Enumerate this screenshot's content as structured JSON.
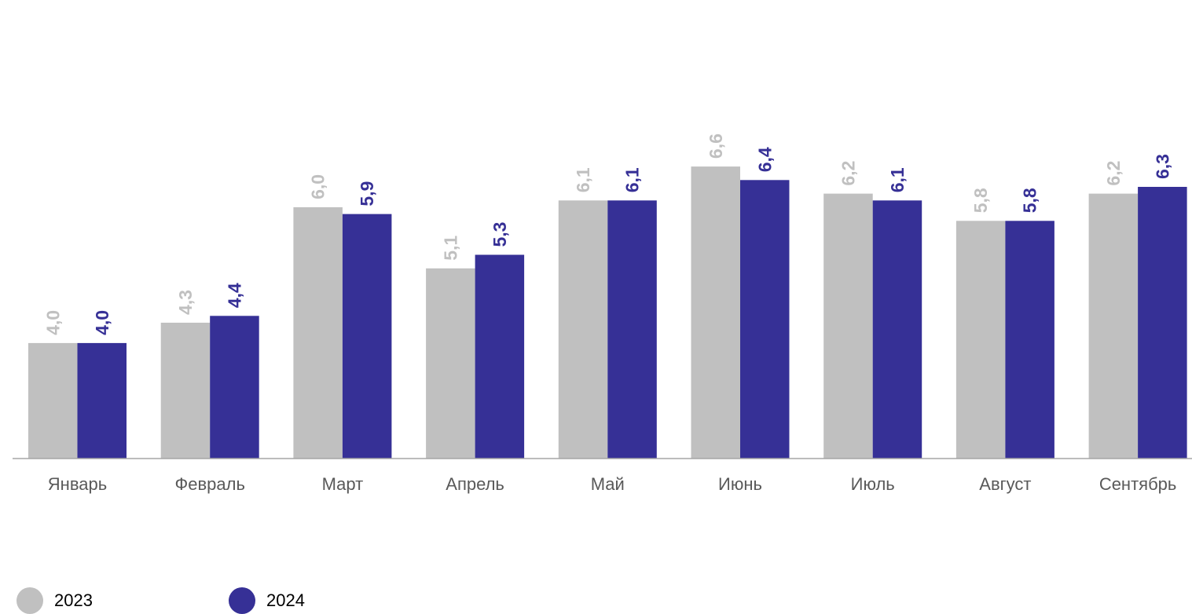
{
  "chart_data": {
    "type": "bar",
    "title": "",
    "xlabel": "",
    "ylabel": "",
    "ylim": [
      0,
      7.0
    ],
    "grid": false,
    "legend_position": "bottom-left",
    "categories": [
      "Январь",
      "Февраль",
      "Март",
      "Апрель",
      "Май",
      "Июнь",
      "Июль",
      "Август",
      "Сентябрь"
    ],
    "series": [
      {
        "name": "2023",
        "color": "#c0c0c0",
        "values": [
          4.0,
          4.3,
          6.0,
          5.1,
          6.1,
          6.6,
          6.2,
          5.8,
          6.2
        ],
        "labels": [
          "4,0",
          "4,3",
          "6,0",
          "5,1",
          "6,1",
          "6,6",
          "6,2",
          "5,8",
          "6,2"
        ]
      },
      {
        "name": "2024",
        "color": "#363096",
        "values": [
          4.0,
          4.4,
          5.9,
          5.3,
          6.1,
          6.4,
          6.1,
          5.8,
          6.3
        ],
        "labels": [
          "4,0",
          "4,4",
          "5,9",
          "5,3",
          "6,1",
          "6,4",
          "6,1",
          "5,8",
          "6,3"
        ]
      }
    ]
  },
  "legend": {
    "items": [
      {
        "label": "2023",
        "color": "#c0c0c0"
      },
      {
        "label": "2024",
        "color": "#363096"
      }
    ]
  }
}
